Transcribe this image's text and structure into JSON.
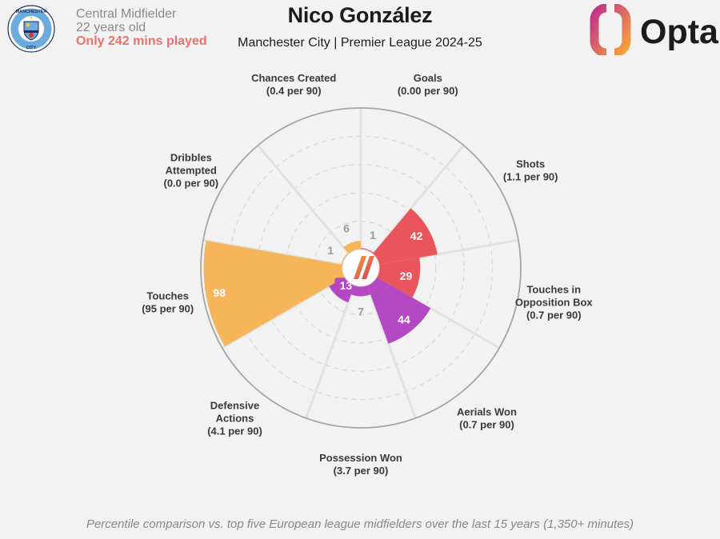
{
  "player": {
    "name": "Nico González",
    "subtitle": "Manchester City | Premier League 2024-25",
    "position": "Central Midfielder",
    "age": "22 years old",
    "warning": "Only 242 mins played"
  },
  "club_badge": {
    "top_text": "MANCHESTER",
    "bottom_text": "CITY",
    "colors": {
      "ring": "#6cabdd",
      "navy": "#1c2c5b",
      "gold": "#f5c243",
      "red": "#d9352a"
    }
  },
  "brand": {
    "name": "Opta",
    "colors": {
      "gradient_start": "#f6a53a",
      "gradient_end": "#c0308b",
      "text": "#1c1c1c"
    }
  },
  "footer": "Percentile comparison vs. top five European league midfielders over the last 15 years (1,350+ minutes)",
  "colors": {
    "attack": "#ea555c",
    "possession": "#f7b55a",
    "defense": "#b448c2",
    "grid": "#d9d9d9",
    "outline": "#a5a5a5",
    "background": "#f2f2f2",
    "value_gray": "#9a9a9a"
  },
  "chart_data": {
    "type": "polar-area (pizza)",
    "scale": [
      0,
      100
    ],
    "grid_rings": [
      20,
      40,
      60,
      80
    ],
    "metrics": [
      {
        "name": "Goals",
        "detail": "(0.00 per 90)",
        "percentile": 1,
        "group": "attack"
      },
      {
        "name": "Shots",
        "detail": "(1.1 per 90)",
        "percentile": 42,
        "group": "attack"
      },
      {
        "name": "Touches in Opposition Box",
        "detail": "(0.7 per 90)",
        "percentile": 29,
        "group": "attack"
      },
      {
        "name": "Aerials Won",
        "detail": "(0.7 per 90)",
        "percentile": 44,
        "group": "defense"
      },
      {
        "name": "Possession Won",
        "detail": "(3.7 per 90)",
        "percentile": 7,
        "group": "defense"
      },
      {
        "name": "Defensive Actions",
        "detail": "(4.1 per 90)",
        "percentile": 13,
        "group": "defense"
      },
      {
        "name": "Touches",
        "detail": "(95 per 90)",
        "percentile": 98,
        "group": "possession"
      },
      {
        "name": "Dribbles Attempted",
        "detail": "(0.0 per 90)",
        "percentile": 1,
        "group": "possession"
      },
      {
        "name": "Chances Created",
        "detail": "(0.4 per 90)",
        "percentile": 6,
        "group": "possession"
      }
    ]
  }
}
